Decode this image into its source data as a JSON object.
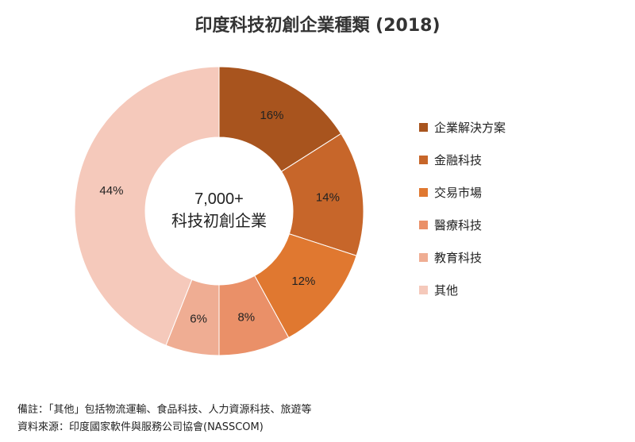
{
  "title": "印度科技初創企業種類 (2018)",
  "chart_data": {
    "type": "pie",
    "variant": "donut",
    "title": "印度科技初創企業種類 (2018)",
    "center_label": {
      "value": "7,000+",
      "text": "科技初創企業"
    },
    "legend_position": "right",
    "categories": [
      "企業解決方案",
      "金融科技",
      "交易市場",
      "醫療科技",
      "教育科技",
      "其他"
    ],
    "values": [
      16,
      14,
      12,
      8,
      6,
      44
    ],
    "labels": [
      "16%",
      "14%",
      "12%",
      "8%",
      "6%",
      "44%"
    ],
    "colors": [
      "#a8541e",
      "#c7662a",
      "#e07830",
      "#ea9068",
      "#efad93",
      "#f5c9bb"
    ]
  },
  "notes": {
    "remark": "備註：「其他」包括物流運輸、食品科技、人力資源科技、旅遊等",
    "source": "資料來源：印度國家軟件與服務公司協會(NASSCOM)"
  }
}
